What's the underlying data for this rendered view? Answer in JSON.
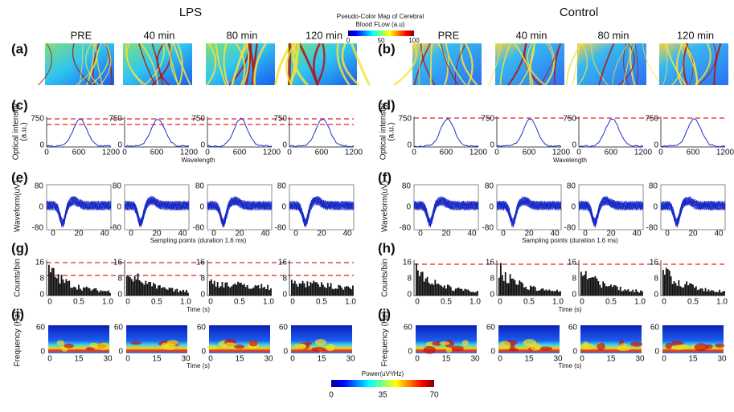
{
  "header": {
    "lps": "LPS",
    "control": "Control"
  },
  "colorbar_flow": {
    "title_line1": "Pseudo-Color Map of Cerebral",
    "title_line2": "Blood FLow  (a.u)",
    "ticks": [
      "0",
      "50",
      "100"
    ]
  },
  "colorbar_power": {
    "title": "Power(uV²/Hz)",
    "ticks": [
      "0",
      "35",
      "70"
    ]
  },
  "columns": [
    "PRE",
    "40 min",
    "80 min",
    "120 min"
  ],
  "panel_labels": [
    "(a)",
    "(b)",
    "(c)",
    "(d)",
    "(e)",
    "(f)",
    "(g)",
    "(h)",
    "(i)",
    "(j)"
  ],
  "optical": {
    "ylabel_line1": "Optical intensity",
    "ylabel_line2": "(a.u.)",
    "yticks": [
      "750",
      "0"
    ],
    "xticks": [
      "0",
      "600",
      "1200"
    ],
    "xlabel": "Wavelength"
  },
  "waveform": {
    "ylabel": "Waveform(uV)",
    "yticks": [
      "80",
      "0",
      "-80"
    ],
    "xticks": [
      "0",
      "20",
      "40"
    ],
    "xlabel": "Sampling points  (duration 1.6 ms)"
  },
  "counts": {
    "ylabel": "Counts/bin",
    "yticks": [
      "16",
      "8",
      "0"
    ],
    "xticks": [
      "0",
      "0.5",
      "1.0"
    ],
    "xlabel": "Time (s)"
  },
  "spectrum": {
    "ylabel": "Frequency (Hz)",
    "yticks": [
      "60",
      "0"
    ],
    "xticks": [
      "0",
      "15",
      "30"
    ],
    "xlabel": "Time (s)"
  }
}
